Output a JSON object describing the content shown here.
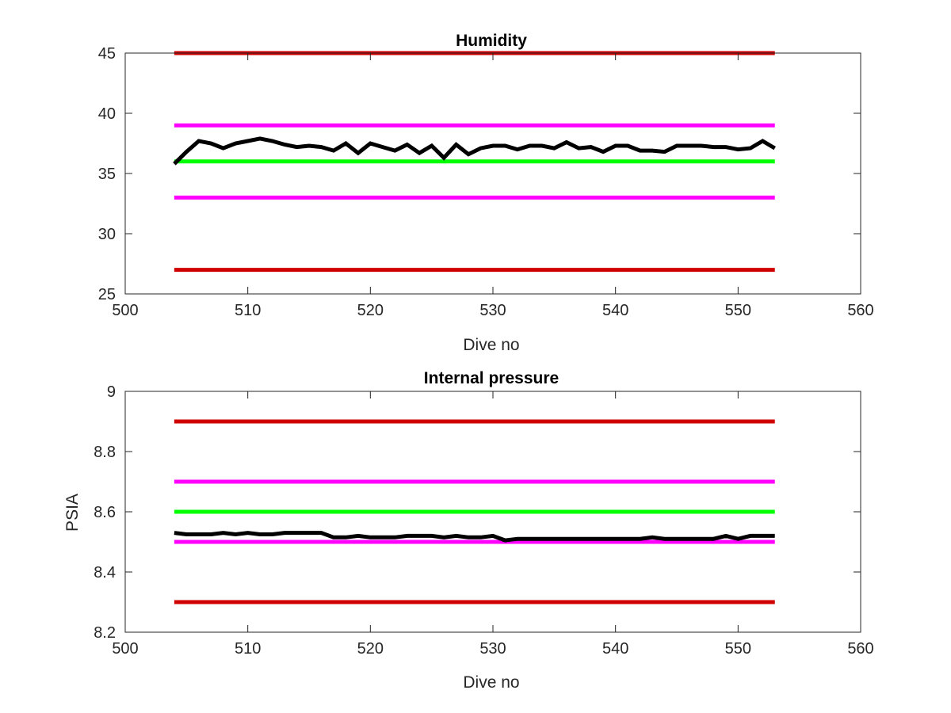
{
  "chart_data": [
    {
      "type": "line",
      "title": "Humidity",
      "xlabel": "Dive no",
      "ylabel": "",
      "xlim": [
        500,
        560
      ],
      "ylim": [
        25,
        45
      ],
      "xticks": [
        500,
        510,
        520,
        530,
        540,
        550,
        560
      ],
      "yticks": [
        25,
        30,
        35,
        40,
        45
      ],
      "grid": false,
      "limit_lines": [
        {
          "y": 45,
          "x": [
            504,
            553
          ],
          "color": "#d00000"
        },
        {
          "y": 39,
          "x": [
            504,
            553
          ],
          "color": "#ff00ff"
        },
        {
          "y": 36,
          "x": [
            504,
            553
          ],
          "color": "#00ff00"
        },
        {
          "y": 33,
          "x": [
            504,
            553
          ],
          "color": "#ff00ff"
        },
        {
          "y": 27,
          "x": [
            504,
            553
          ],
          "color": "#d00000"
        }
      ],
      "series": [
        {
          "color": "#000000",
          "x": [
            504,
            505,
            506,
            507,
            508,
            509,
            510,
            511,
            512,
            513,
            514,
            515,
            516,
            517,
            518,
            519,
            520,
            521,
            522,
            523,
            524,
            525,
            526,
            527,
            528,
            529,
            530,
            531,
            532,
            533,
            534,
            535,
            536,
            537,
            538,
            539,
            540,
            541,
            542,
            543,
            544,
            545,
            546,
            547,
            548,
            549,
            550,
            551,
            552,
            553
          ],
          "values": [
            35.8,
            36.8,
            37.7,
            37.5,
            37.1,
            37.5,
            37.7,
            37.9,
            37.7,
            37.4,
            37.2,
            37.3,
            37.2,
            36.9,
            37.5,
            36.7,
            37.5,
            37.2,
            36.9,
            37.4,
            36.7,
            37.3,
            36.3,
            37.4,
            36.6,
            37.1,
            37.3,
            37.3,
            37.0,
            37.3,
            37.3,
            37.1,
            37.6,
            37.1,
            37.2,
            36.8,
            37.3,
            37.3,
            36.9,
            36.9,
            36.8,
            37.3,
            37.3,
            37.3,
            37.2,
            37.2,
            37.0,
            37.1,
            37.7,
            37.1
          ]
        }
      ]
    },
    {
      "type": "line",
      "title": "Internal pressure",
      "xlabel": "Dive no",
      "ylabel": "PSIA",
      "xlim": [
        500,
        560
      ],
      "ylim": [
        8.2,
        9
      ],
      "xticks": [
        500,
        510,
        520,
        530,
        540,
        550,
        560
      ],
      "yticks": [
        "8.2",
        "8.4",
        "8.6",
        "8.8",
        "9"
      ],
      "grid": false,
      "limit_lines": [
        {
          "y": 8.9,
          "x": [
            504,
            553
          ],
          "color": "#d00000"
        },
        {
          "y": 8.7,
          "x": [
            504,
            553
          ],
          "color": "#ff00ff"
        },
        {
          "y": 8.6,
          "x": [
            504,
            553
          ],
          "color": "#00ff00"
        },
        {
          "y": 8.5,
          "x": [
            504,
            553
          ],
          "color": "#ff00ff"
        },
        {
          "y": 8.3,
          "x": [
            504,
            553
          ],
          "color": "#d00000"
        }
      ],
      "series": [
        {
          "color": "#000000",
          "x": [
            504,
            505,
            506,
            507,
            508,
            509,
            510,
            511,
            512,
            513,
            514,
            515,
            516,
            517,
            518,
            519,
            520,
            521,
            522,
            523,
            524,
            525,
            526,
            527,
            528,
            529,
            530,
            531,
            532,
            533,
            534,
            535,
            536,
            537,
            538,
            539,
            540,
            541,
            542,
            543,
            544,
            545,
            546,
            547,
            548,
            549,
            550,
            551,
            552,
            553
          ],
          "values": [
            8.53,
            8.525,
            8.525,
            8.525,
            8.53,
            8.525,
            8.53,
            8.525,
            8.525,
            8.53,
            8.53,
            8.53,
            8.53,
            8.515,
            8.515,
            8.52,
            8.515,
            8.515,
            8.515,
            8.52,
            8.52,
            8.52,
            8.515,
            8.52,
            8.515,
            8.515,
            8.52,
            8.505,
            8.51,
            8.51,
            8.51,
            8.51,
            8.51,
            8.51,
            8.51,
            8.51,
            8.51,
            8.51,
            8.51,
            8.515,
            8.51,
            8.51,
            8.51,
            8.51,
            8.51,
            8.52,
            8.51,
            8.52,
            8.52,
            8.52
          ]
        }
      ]
    }
  ]
}
